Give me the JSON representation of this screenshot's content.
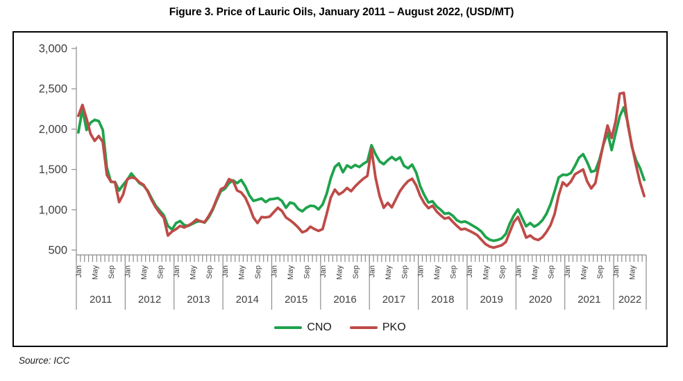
{
  "figure": {
    "title": "Figure 3. Price of Lauric Oils, January 2011 – August 2022, (USD/MT)",
    "source": "Source: ICC"
  },
  "chart_data": {
    "type": "line",
    "title": "Figure 3. Price of Lauric Oils, January 2011 – August 2022, (USD/MT)",
    "unit": "USD/MT",
    "x_axis": {
      "years": [
        "2011",
        "2012",
        "2013",
        "2014",
        "2015",
        "2016",
        "2017",
        "2018",
        "2019",
        "2020",
        "2021",
        "2022"
      ],
      "month_tick_labels": [
        "Jan",
        "May",
        "Sep"
      ],
      "n_months": 140,
      "last_year_months": 8
    },
    "y_axis": {
      "min": 500,
      "max": 3000,
      "step": 500,
      "tick_labels": [
        "500",
        "1,000",
        "1,500",
        "2,000",
        "2,500",
        "3,000"
      ]
    },
    "legend": [
      {
        "name": "CNO",
        "color": "#1EA34C"
      },
      {
        "name": "PKO",
        "color": "#BE4B48"
      }
    ],
    "series": [
      {
        "name": "CNO",
        "color": "#1EA34C",
        "values": [
          1960,
          2250,
          1990,
          2080,
          2115,
          2100,
          1990,
          1520,
          1345,
          1345,
          1240,
          1310,
          1370,
          1450,
          1390,
          1330,
          1300,
          1240,
          1140,
          1050,
          990,
          930,
          800,
          755,
          835,
          860,
          810,
          800,
          825,
          850,
          860,
          840,
          905,
          1000,
          1120,
          1230,
          1260,
          1330,
          1365,
          1330,
          1370,
          1290,
          1180,
          1110,
          1125,
          1140,
          1095,
          1130,
          1135,
          1145,
          1110,
          1025,
          1090,
          1075,
          1010,
          980,
          1025,
          1050,
          1045,
          1005,
          1065,
          1200,
          1390,
          1530,
          1575,
          1465,
          1550,
          1520,
          1555,
          1530,
          1570,
          1600,
          1800,
          1690,
          1600,
          1565,
          1615,
          1655,
          1615,
          1650,
          1545,
          1515,
          1560,
          1460,
          1290,
          1180,
          1090,
          1105,
          1040,
          1000,
          950,
          960,
          925,
          870,
          845,
          855,
          830,
          800,
          770,
          730,
          665,
          630,
          615,
          625,
          645,
          700,
          830,
          930,
          1005,
          900,
          795,
          835,
          790,
          820,
          870,
          950,
          1070,
          1230,
          1400,
          1435,
          1430,
          1455,
          1545,
          1645,
          1690,
          1590,
          1470,
          1485,
          1620,
          1810,
          1955,
          1740,
          1950,
          2160,
          2270,
          2075,
          1775,
          1615,
          1515,
          1370
        ]
      },
      {
        "name": "PKO",
        "color": "#BE4B48",
        "values": [
          2165,
          2300,
          2130,
          1940,
          1855,
          1915,
          1840,
          1430,
          1350,
          1340,
          1095,
          1190,
          1380,
          1400,
          1390,
          1340,
          1310,
          1230,
          1120,
          1030,
          960,
          900,
          680,
          730,
          760,
          800,
          780,
          805,
          835,
          880,
          855,
          845,
          920,
          1010,
          1135,
          1255,
          1280,
          1380,
          1355,
          1240,
          1215,
          1150,
          1040,
          905,
          835,
          910,
          905,
          915,
          970,
          1025,
          985,
          905,
          870,
          830,
          780,
          720,
          740,
          790,
          760,
          738,
          760,
          950,
          1150,
          1250,
          1190,
          1220,
          1270,
          1230,
          1290,
          1340,
          1385,
          1420,
          1755,
          1400,
          1170,
          1025,
          1085,
          1030,
          1130,
          1230,
          1300,
          1355,
          1385,
          1300,
          1170,
          1080,
          1020,
          1050,
          980,
          930,
          890,
          905,
          850,
          800,
          755,
          765,
          740,
          715,
          685,
          630,
          575,
          545,
          530,
          545,
          560,
          600,
          725,
          850,
          910,
          790,
          655,
          680,
          640,
          625,
          660,
          725,
          810,
          950,
          1180,
          1340,
          1295,
          1350,
          1440,
          1470,
          1500,
          1350,
          1265,
          1330,
          1580,
          1820,
          2045,
          1890,
          2100,
          2440,
          2450,
          2050,
          1790,
          1555,
          1335,
          1170
        ]
      }
    ]
  }
}
